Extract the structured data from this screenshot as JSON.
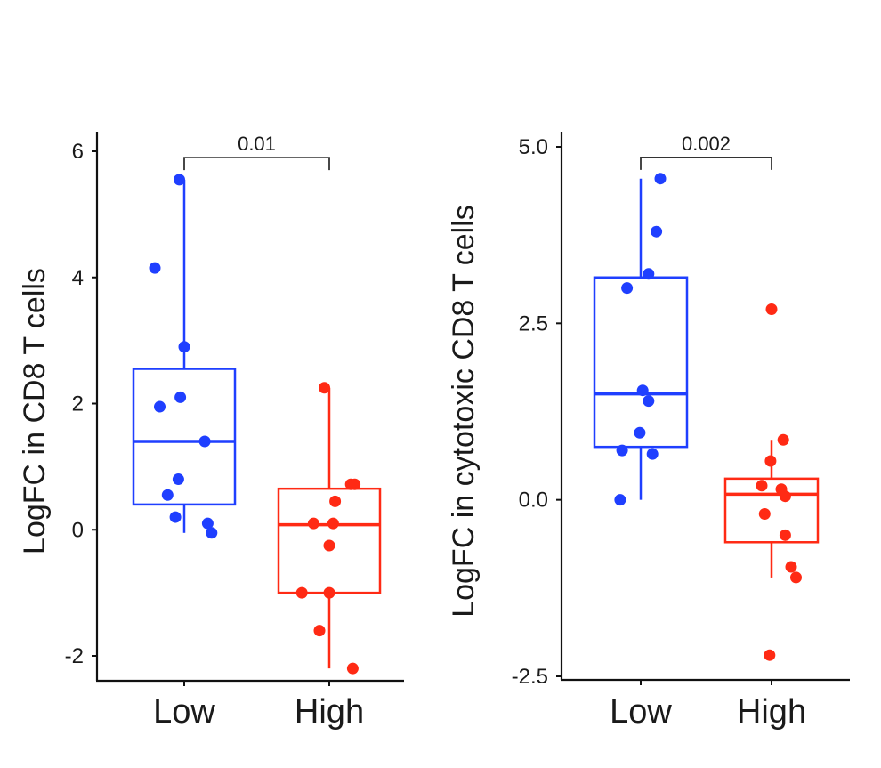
{
  "chart_data": [
    {
      "type": "boxplot",
      "title": "",
      "xlabel": "",
      "ylabel": "LogFC in CD8 T cells",
      "categories": [
        "Low",
        "High"
      ],
      "ylim": [
        -2.6,
        6.3
      ],
      "yticks": [
        -2,
        0,
        2,
        4,
        6
      ],
      "ytick_labels": [
        "-2",
        "0",
        "2",
        "4",
        "6"
      ],
      "colors": {
        "Low": "#1f3fff",
        "High": "#ff2a14"
      },
      "boxes": [
        {
          "name": "Low",
          "q1": 0.4,
          "median": 1.4,
          "q3": 2.55,
          "whisker_low": -0.05,
          "whisker_high": 5.55
        },
        {
          "name": "High",
          "q1": -1.0,
          "median": 0.08,
          "q3": 0.65,
          "whisker_low": -2.2,
          "whisker_high": 2.25
        }
      ],
      "points": [
        {
          "group": "Low",
          "values": [
            5.55,
            4.15,
            2.9,
            2.1,
            1.95,
            1.4,
            0.8,
            0.55,
            0.2,
            0.1,
            -0.05
          ],
          "jitter": [
            -0.05,
            -0.3,
            0.0,
            -0.04,
            -0.25,
            0.21,
            -0.06,
            -0.17,
            -0.09,
            0.24,
            0.28
          ]
        },
        {
          "group": "High",
          "values": [
            2.25,
            0.72,
            0.72,
            0.45,
            0.1,
            0.1,
            -0.25,
            -1.0,
            -1.0,
            -1.6,
            -2.2
          ],
          "jitter": [
            -0.05,
            0.22,
            0.26,
            0.06,
            -0.16,
            0.04,
            0.0,
            -0.28,
            0.0,
            -0.1,
            0.24
          ]
        }
      ],
      "comparison": {
        "label": "0.01",
        "from": "Low",
        "to": "High",
        "y": 5.9
      }
    },
    {
      "type": "boxplot",
      "title": "",
      "xlabel": "",
      "ylabel": "LogFC in cytotoxic CD8 T cells",
      "categories": [
        "Low",
        "High"
      ],
      "ylim": [
        -2.55,
        5.25
      ],
      "yticks": [
        -2.5,
        0.0,
        2.5,
        5.0
      ],
      "ytick_labels": [
        "-2.5",
        "0.0",
        "2.5",
        "5.0"
      ],
      "colors": {
        "Low": "#1f3fff",
        "High": "#ff2a14"
      },
      "boxes": [
        {
          "name": "Low",
          "q1": 0.75,
          "median": 1.5,
          "q3": 3.15,
          "whisker_low": 0.0,
          "whisker_high": 4.55
        },
        {
          "name": "High",
          "q1": -0.6,
          "median": 0.08,
          "q3": 0.3,
          "whisker_low": -1.1,
          "whisker_high": 0.85
        }
      ],
      "points": [
        {
          "group": "Low",
          "values": [
            4.55,
            3.8,
            3.2,
            3.0,
            1.55,
            1.4,
            0.95,
            0.7,
            0.65,
            0.0
          ],
          "jitter": [
            0.2,
            0.16,
            0.08,
            -0.14,
            0.02,
            0.08,
            -0.01,
            -0.19,
            0.12,
            -0.21
          ]
        },
        {
          "group": "High",
          "values": [
            2.7,
            0.85,
            0.55,
            0.2,
            0.15,
            0.05,
            -0.2,
            -0.5,
            -0.95,
            -1.1,
            -2.2
          ],
          "jitter": [
            0.0,
            0.12,
            -0.01,
            -0.1,
            0.1,
            0.14,
            -0.07,
            0.14,
            0.2,
            0.25,
            -0.02
          ]
        }
      ],
      "comparison": {
        "label": "0.002",
        "from": "Low",
        "to": "High",
        "y": 4.85
      }
    }
  ]
}
